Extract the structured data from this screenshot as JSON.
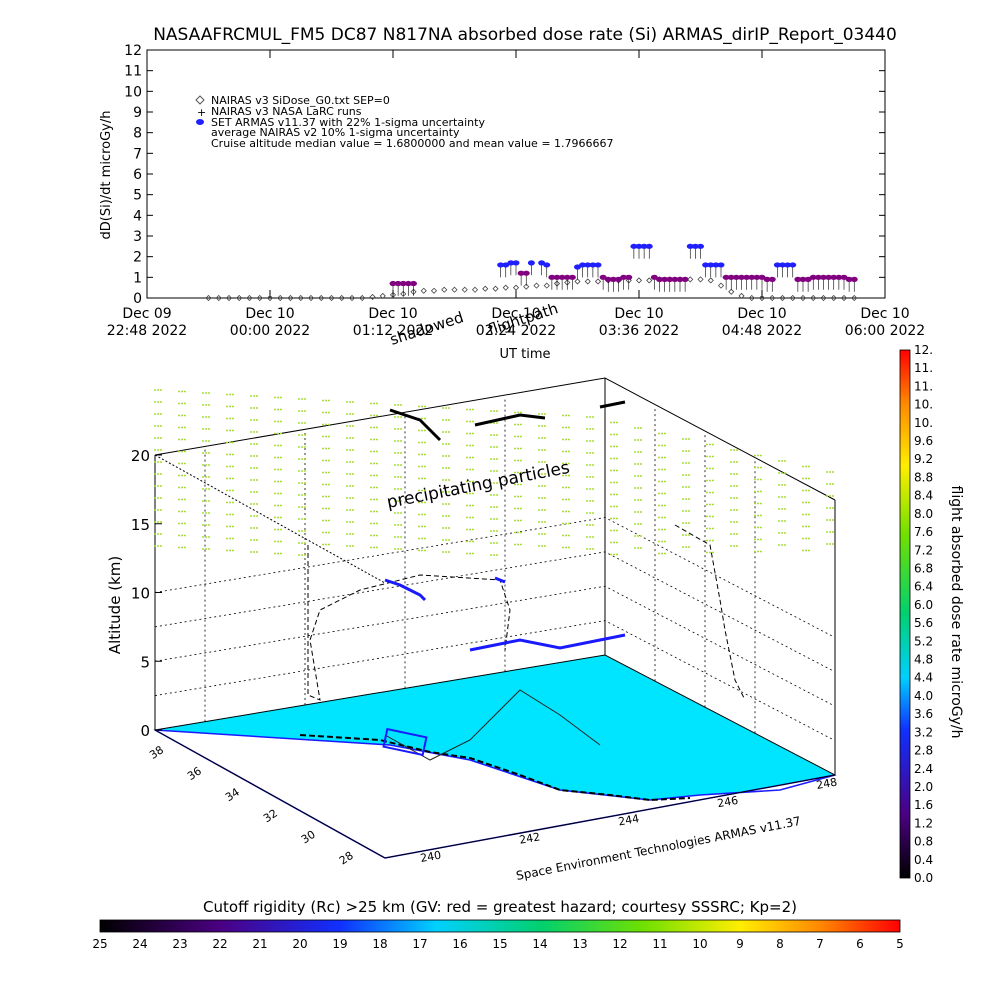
{
  "title": "NASAAFRCMUL_FM5 DC87 N817NA absorbed dose rate (Si) ARMAS_dirIP_Report_03440",
  "chart_data": [
    {
      "type": "scatter",
      "ylabel": "dD(Si)/dt microGy/h",
      "xlabel": "UT time",
      "ylim": [
        0,
        12
      ],
      "y_ticks": [
        "0",
        "1",
        "2",
        "3",
        "4",
        "5",
        "6",
        "7",
        "8",
        "9",
        "10",
        "11",
        "12"
      ],
      "x_ticks": [
        {
          "line1": "Dec 09",
          "line2": "22:48 2022"
        },
        {
          "line1": "Dec 10",
          "line2": "00:00 2022"
        },
        {
          "line1": "Dec 10",
          "line2": "01:12 2022"
        },
        {
          "line1": "Dec 10",
          "line2": "02:24 2022"
        },
        {
          "line1": "Dec 10",
          "line2": "03:36 2022"
        },
        {
          "line1": "Dec 10",
          "line2": "04:48 2022"
        },
        {
          "line1": "Dec 10",
          "line2": "06:00 2022"
        }
      ],
      "legend_placement": "top-left",
      "legend": [
        {
          "symbol": "diamond",
          "text": "NAIRAS v3 SiDose_G0.txt SEP=0"
        },
        {
          "symbol": "plus",
          "text": "NAIRAS v3 NASA LaRC runs"
        },
        {
          "symbol": "dot",
          "text": "SET ARMAS v11.37 with 22% 1-sigma uncertainty"
        },
        {
          "symbol": "none",
          "text": "average NAIRAS v2 10% 1-sigma uncertainty"
        },
        {
          "symbol": "none",
          "text": "Cruise altitude median value =    1.6800000 and mean value =    1.7966667"
        }
      ],
      "overlay_labels": [
        "shadowed",
        "flightpath"
      ],
      "series": [
        {
          "marker": "diamond",
          "x": [
            0.6,
            0.7,
            0.8,
            0.9,
            1.0,
            1.1,
            1.2,
            1.3,
            1.4,
            1.5,
            1.6,
            1.7,
            1.8,
            1.9,
            2.0,
            2.1,
            2.2,
            2.3,
            2.4,
            2.5,
            2.6,
            2.7,
            2.8,
            2.9,
            3.0,
            3.1,
            3.2,
            3.3,
            3.4,
            3.5,
            3.6,
            3.7,
            3.8,
            3.9,
            4.0,
            4.1,
            4.2,
            4.3,
            4.4,
            4.5,
            4.6,
            4.7,
            4.8,
            4.9,
            5.0,
            5.1,
            5.2,
            5.3,
            5.4,
            5.5,
            5.6,
            5.7,
            5.8,
            5.9,
            6.0,
            6.1,
            6.2,
            6.3,
            6.4,
            6.5,
            6.6,
            6.7,
            6.8,
            6.9
          ],
          "y": [
            0,
            0,
            0,
            0,
            0,
            0,
            0,
            0,
            0,
            0,
            0,
            0,
            0,
            0,
            0,
            0,
            0.05,
            0.1,
            0.15,
            0.2,
            0.3,
            0.35,
            0.35,
            0.4,
            0.4,
            0.4,
            0.4,
            0.45,
            0.45,
            0.5,
            0.5,
            0.55,
            0.6,
            0.6,
            0.7,
            0.75,
            0.8,
            0.8,
            0.8,
            0.85,
            0.85,
            0.85,
            0.85,
            0.85,
            0.9,
            0.9,
            0.9,
            0.9,
            0.9,
            0.85,
            0.6,
            0.3,
            0.1,
            0,
            0,
            0,
            0,
            0,
            0,
            0,
            0,
            0,
            0,
            0
          ]
        },
        {
          "marker": "dot",
          "x": [
            2.4,
            2.45,
            2.5,
            2.55,
            2.6,
            3.45,
            3.5,
            3.55,
            3.6,
            3.65,
            3.7,
            3.75,
            3.85,
            3.9,
            3.95,
            4.0,
            4.05,
            4.1,
            4.15,
            4.2,
            4.25,
            4.3,
            4.35,
            4.4,
            4.45,
            4.5,
            4.55,
            4.6,
            4.65,
            4.7,
            4.75,
            4.8,
            4.85,
            4.9,
            4.95,
            5.0,
            5.05,
            5.1,
            5.15,
            5.2,
            5.25,
            5.3,
            5.35,
            5.4,
            5.45,
            5.5,
            5.55,
            5.6,
            5.65,
            5.7,
            5.75,
            5.8,
            5.85,
            5.9,
            5.95,
            6.0,
            6.05,
            6.1,
            6.15,
            6.2,
            6.25,
            6.3,
            6.35,
            6.4,
            6.45,
            6.5,
            6.55,
            6.6,
            6.65,
            6.7,
            6.75,
            6.8,
            6.85,
            6.9
          ],
          "y": [
            0.7,
            0.7,
            0.7,
            0.7,
            0.7,
            1.6,
            1.6,
            1.7,
            1.7,
            1.2,
            1.2,
            1.7,
            1.7,
            1.6,
            1.0,
            1.0,
            1.0,
            1.0,
            1.0,
            1.5,
            1.6,
            1.6,
            1.6,
            1.6,
            1.0,
            0.9,
            0.9,
            0.9,
            1.0,
            1.0,
            2.5,
            2.5,
            2.5,
            2.5,
            1.0,
            0.9,
            0.9,
            0.9,
            0.9,
            0.9,
            0.9,
            2.5,
            2.5,
            2.5,
            1.6,
            1.6,
            1.6,
            1.6,
            1.0,
            1.0,
            1.0,
            1.0,
            1.0,
            1.0,
            1.0,
            1.0,
            0.9,
            0.9,
            1.6,
            1.6,
            1.6,
            1.6,
            0.9,
            0.9,
            0.9,
            1.0,
            1.0,
            1.0,
            1.0,
            1.0,
            1.0,
            1.0,
            0.9,
            0.9
          ]
        }
      ]
    },
    {
      "type": "3d-scatter",
      "zlabel": "Altitude (km)",
      "z_ticks": [
        "0",
        "5",
        "10",
        "15",
        "20"
      ],
      "lat_ticks": [
        "28",
        "30",
        "32",
        "34",
        "36",
        "38"
      ],
      "lon_ticks": [
        "240",
        "242",
        "244",
        "246",
        "248"
      ],
      "annotation": "precipitating particles",
      "credit": "Space Environment Technologies ARMAS v11.37",
      "colorbar_label": "flight absorbed dose rate microGy/h",
      "colorbar_ticks": [
        "0.0",
        "0.4",
        "0.8",
        "1.2",
        "1.6",
        "2.0",
        "2.4",
        "2.8",
        "3.2",
        "3.6",
        "4.0",
        "4.4",
        "4.8",
        "5.2",
        "5.6",
        "6.0",
        "6.4",
        "6.8",
        "7.2",
        "7.6",
        "8.0",
        "8.4",
        "8.8",
        "9.2",
        "9.6",
        "10.",
        "10.",
        "11.",
        "11.",
        "12."
      ]
    },
    {
      "type": "colorbar",
      "title": "Cutoff rigidity (Rc) >25 km (GV: red = greatest hazard; courtesy SSSRC; Kp=2)",
      "ticks": [
        "25",
        "24",
        "23",
        "22",
        "21",
        "20",
        "19",
        "18",
        "17",
        "16",
        "15",
        "14",
        "13",
        "12",
        "11",
        "10",
        "9",
        "8",
        "7",
        "6",
        "5"
      ]
    }
  ],
  "colors": {
    "ocean_cyan": "#00e5ff",
    "marker_blue": "#2020ff",
    "marker_purple": "#800080",
    "precip_green": "#a6e030",
    "coast_blue": "#1a1aff"
  }
}
